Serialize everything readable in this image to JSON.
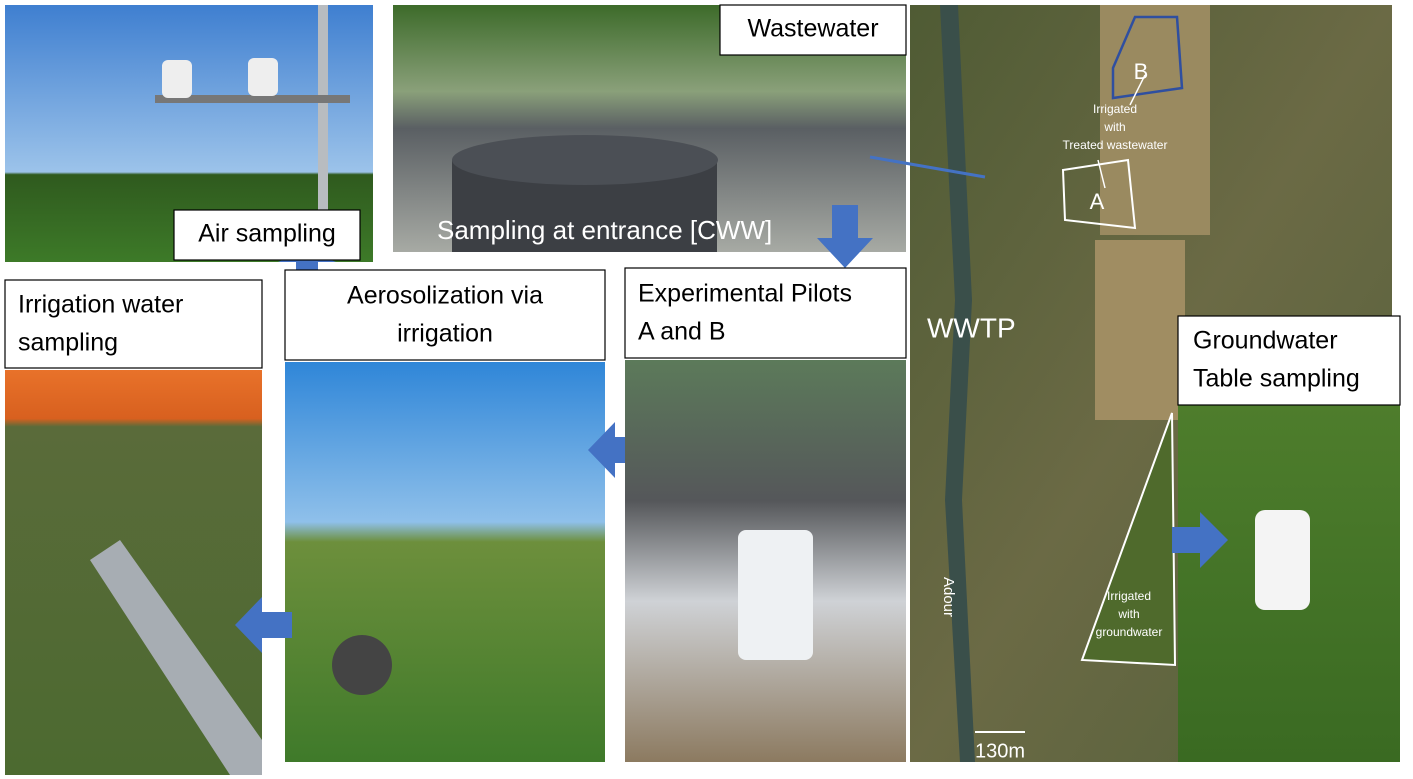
{
  "air": {
    "label": "Air sampling"
  },
  "wastewater": {
    "label": "Wastewater",
    "caption": "Sampling at entrance [CWW]"
  },
  "irrigation_water": {
    "lines": [
      "Irrigation water",
      "sampling"
    ]
  },
  "aerosolization": {
    "lines": [
      "Aerosolization via",
      "irrigation"
    ]
  },
  "pilots": {
    "lines": [
      "Experimental Pilots",
      "A and B"
    ]
  },
  "groundwater": {
    "lines": [
      "Groundwater",
      "Table sampling"
    ]
  },
  "map": {
    "wwtp": "WWTP",
    "plot_b": "B",
    "plot_a": "A",
    "treated_note": [
      "Irrigated",
      "with",
      "Treated wastewater"
    ],
    "ground_note": [
      "Irrigated",
      "with",
      "groundwater"
    ],
    "river": "Adour",
    "scale": "130m"
  }
}
